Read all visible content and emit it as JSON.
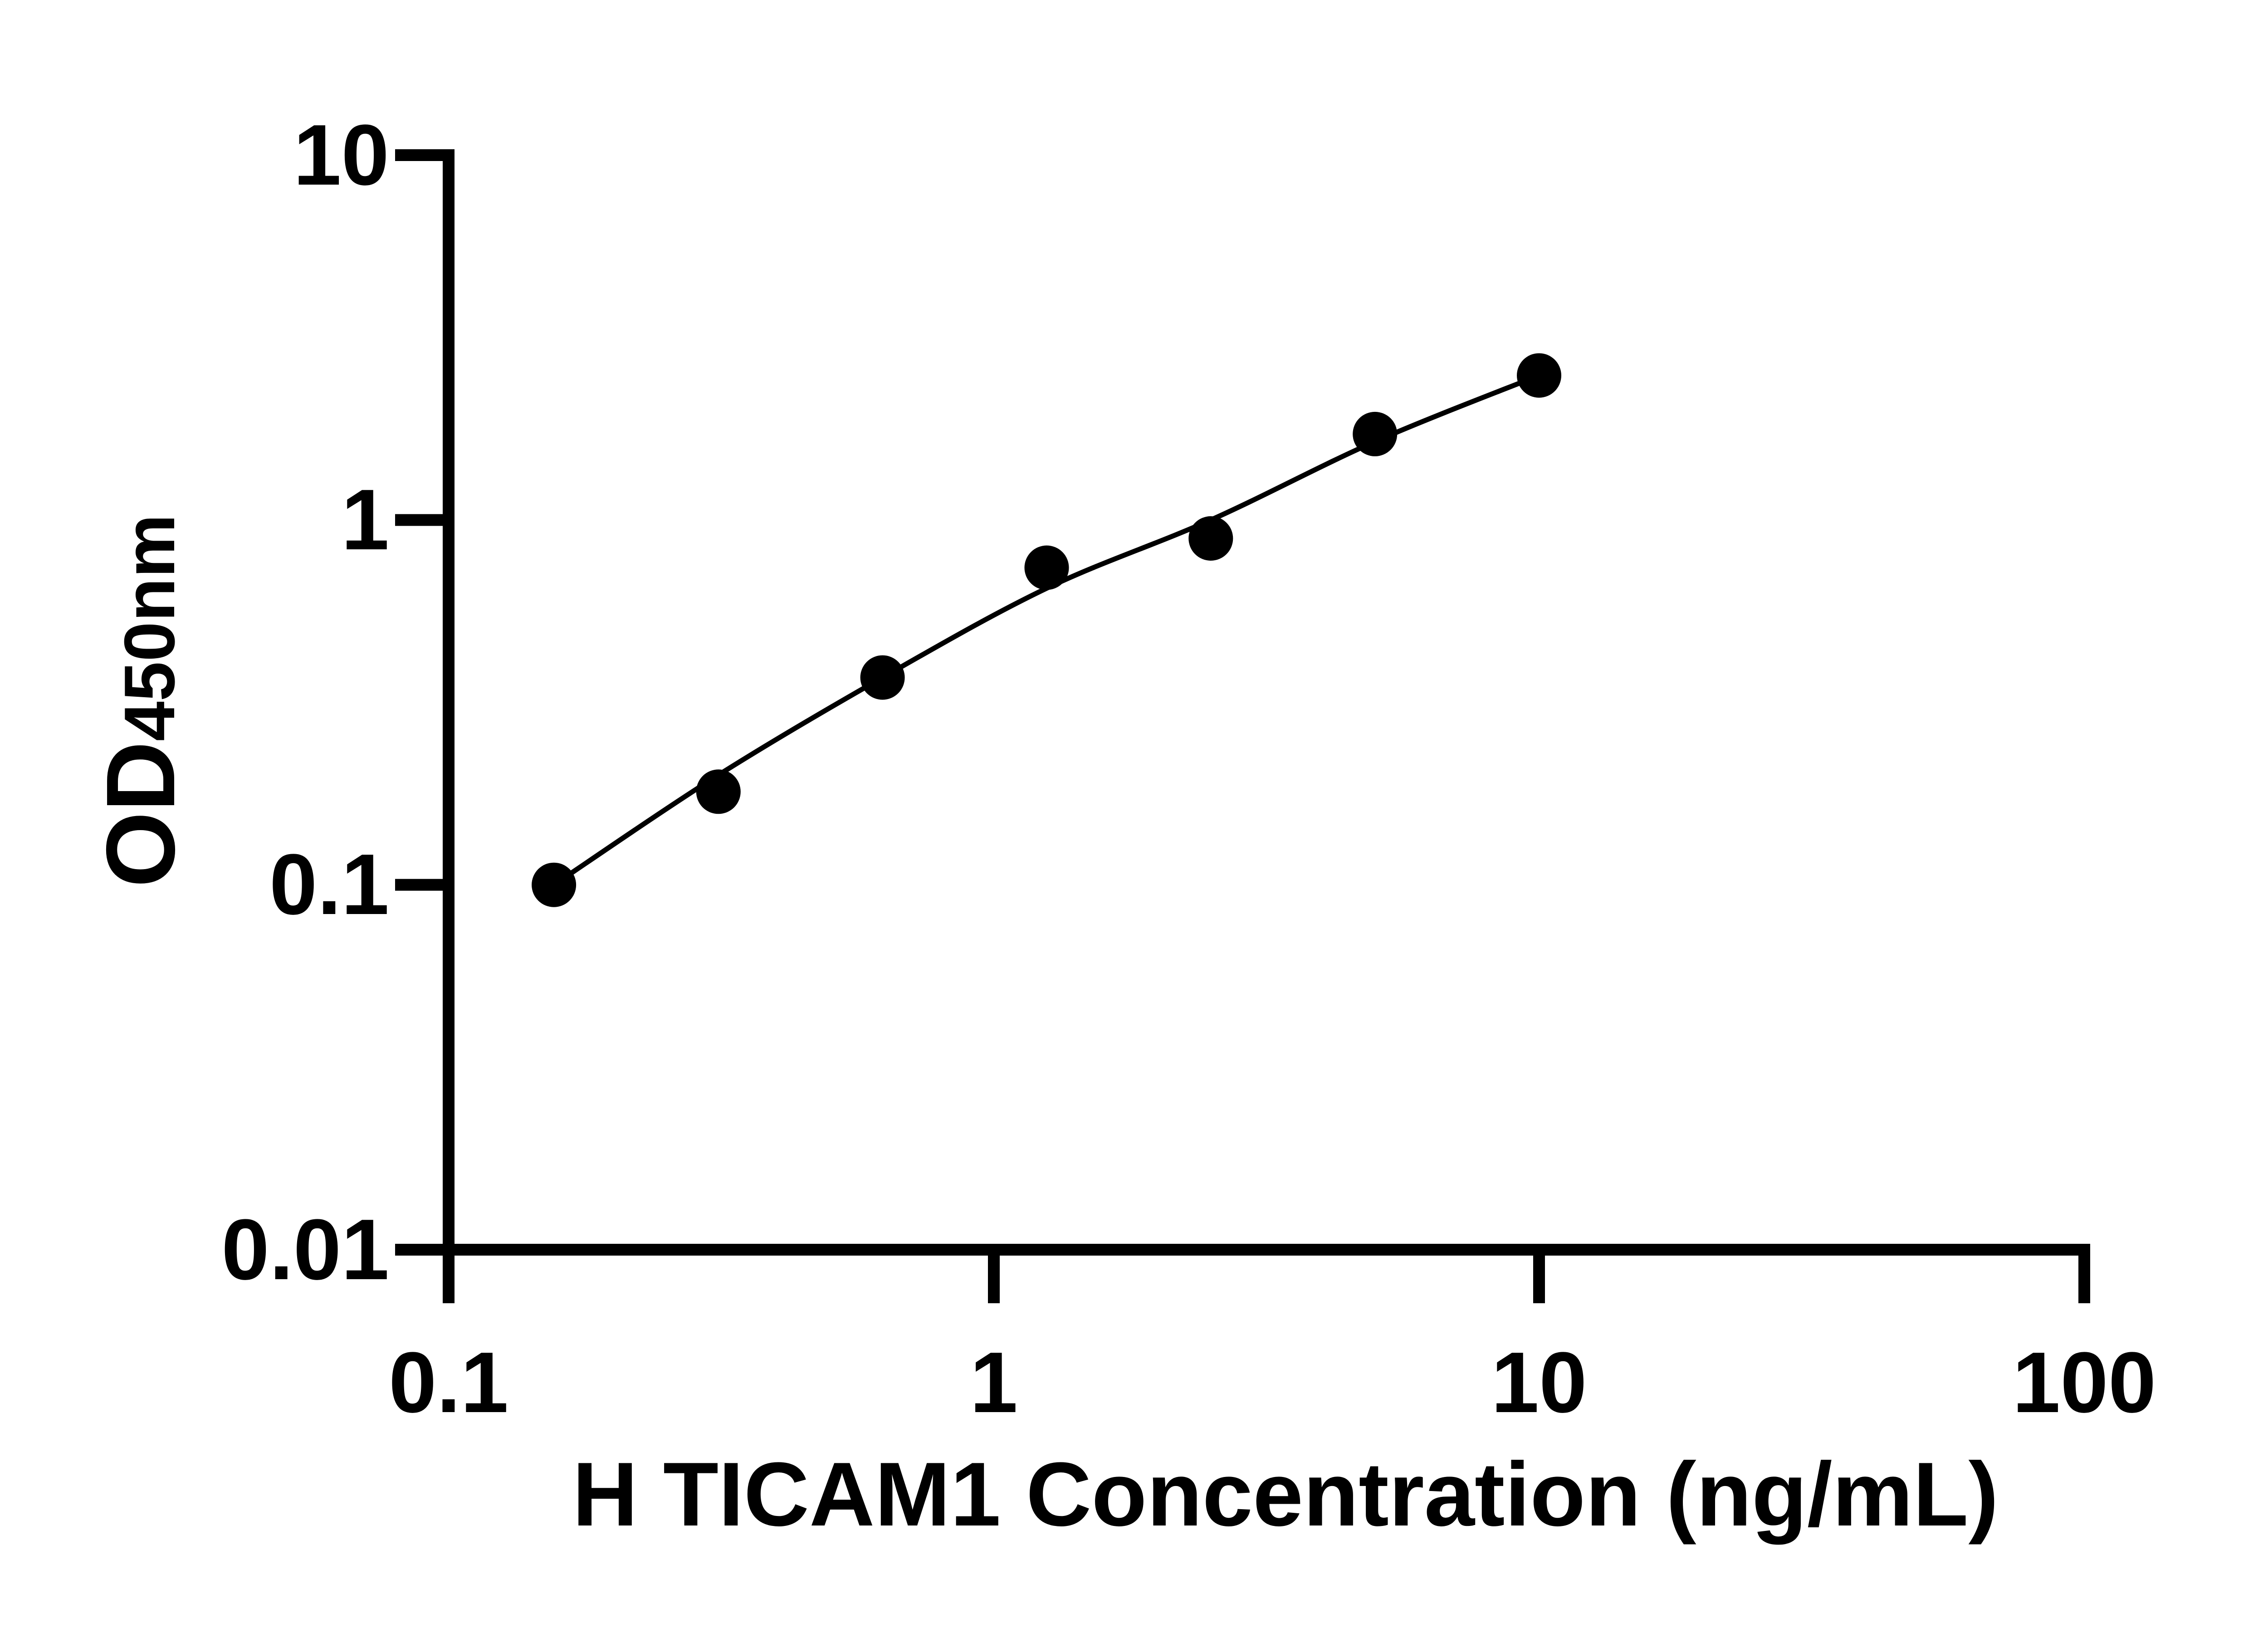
{
  "figure": {
    "background_color": "#ffffff",
    "foreground_color": "#000000"
  },
  "x_axis": {
    "title": "H TICAM1 Concentration (ng/mL)",
    "tick_labels": [
      "0.1",
      "1",
      "10",
      "100"
    ]
  },
  "y_axis": {
    "title_main": "OD",
    "title_subscript": "450nm",
    "tick_labels": [
      "10",
      "1",
      "0.1",
      "0.01"
    ]
  },
  "chart_data": {
    "type": "scatter",
    "title": "",
    "xlabel": "H TICAM1 Concentration (ng/mL)",
    "ylabel": "OD450nm",
    "x_scale": "log",
    "y_scale": "log",
    "x_range": [
      0.1,
      100
    ],
    "y_range": [
      0.01,
      10
    ],
    "x_ticks": [
      0.1,
      1,
      10,
      100
    ],
    "y_ticks": [
      10,
      1,
      0.1,
      0.01
    ],
    "grid": "off",
    "legend": "none",
    "marker_color": "#000000",
    "line_color": "#000000",
    "series": [
      {
        "name": "standard-points",
        "type": "points",
        "x": [
          0.156,
          0.3125,
          0.625,
          1.25,
          2.5,
          5,
          10
        ],
        "y": [
          0.1,
          0.18,
          0.37,
          0.74,
          0.89,
          1.72,
          2.49
        ]
      },
      {
        "name": "fit-curve",
        "type": "line",
        "x": [
          0.156,
          0.3125,
          0.625,
          1.25,
          2.5,
          5,
          10
        ],
        "y": [
          0.1,
          0.2,
          0.37,
          0.65,
          1.0,
          1.64,
          2.49
        ]
      }
    ]
  }
}
